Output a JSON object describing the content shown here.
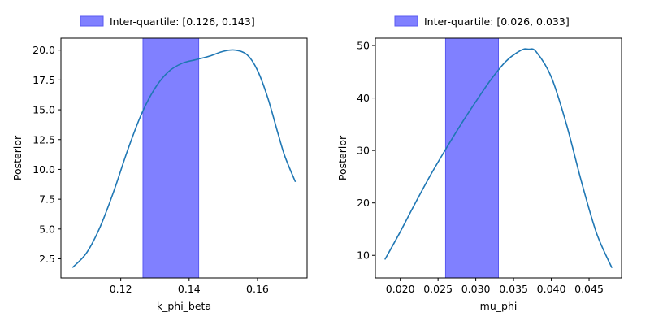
{
  "chart_data": [
    {
      "type": "line",
      "xlabel": "k_phi_beta",
      "ylabel": "Posterior",
      "xlim": [
        0.1025,
        0.1745
      ],
      "ylim": [
        0.9,
        21.0
      ],
      "xticks": [
        0.12,
        0.14,
        0.16
      ],
      "xtick_labels": [
        "0.12",
        "0.14",
        "0.16"
      ],
      "yticks": [
        2.5,
        5.0,
        7.5,
        10.0,
        12.5,
        15.0,
        17.5,
        20.0
      ],
      "ytick_labels": [
        "2.5",
        "5.0",
        "7.5",
        "10.0",
        "12.5",
        "15.0",
        "17.5",
        "20.0"
      ],
      "grid": false,
      "band": {
        "label": "Inter-quartile: [0.126, 0.143]",
        "x0": 0.1265,
        "x1": 0.1428,
        "color": "#8080ff"
      },
      "legend_position": "top-center-outside",
      "series": [
        {
          "color": "#1f77b4",
          "x": [
            0.106,
            0.11,
            0.114,
            0.118,
            0.122,
            0.126,
            0.13,
            0.134,
            0.138,
            0.142,
            0.146,
            0.15,
            0.1535,
            0.157,
            0.16,
            0.163,
            0.166,
            0.168,
            0.171
          ],
          "y": [
            1.8,
            3.0,
            5.2,
            8.2,
            11.6,
            14.6,
            16.8,
            18.2,
            18.9,
            19.2,
            19.5,
            19.9,
            20.0,
            19.6,
            18.3,
            16.0,
            13.0,
            11.1,
            9.0
          ]
        }
      ]
    },
    {
      "type": "line",
      "xlabel": "mu_phi",
      "ylabel": "Posterior",
      "xlim": [
        0.0167,
        0.0493
      ],
      "ylim": [
        5.7,
        51.4
      ],
      "xticks": [
        0.02,
        0.025,
        0.03,
        0.035,
        0.04,
        0.045
      ],
      "xtick_labels": [
        "0.020",
        "0.025",
        "0.030",
        "0.035",
        "0.040",
        "0.045"
      ],
      "yticks": [
        10,
        20,
        30,
        40,
        50
      ],
      "ytick_labels": [
        "10",
        "20",
        "30",
        "40",
        "50"
      ],
      "grid": false,
      "band": {
        "label": "Inter-quartile: [0.026, 0.033]",
        "x0": 0.026,
        "x1": 0.033,
        "color": "#8080ff"
      },
      "legend_position": "top-center-outside",
      "series": [
        {
          "color": "#1f77b4",
          "x": [
            0.018,
            0.02,
            0.022,
            0.024,
            0.026,
            0.028,
            0.03,
            0.032,
            0.034,
            0.036,
            0.037,
            0.038,
            0.04,
            0.042,
            0.044,
            0.046,
            0.048
          ],
          "y": [
            9.3,
            14.5,
            20.0,
            25.3,
            30.2,
            34.9,
            39.3,
            43.5,
            47.0,
            49.1,
            49.3,
            48.8,
            44.0,
            35.0,
            24.0,
            14.2,
            7.7
          ]
        }
      ]
    }
  ]
}
